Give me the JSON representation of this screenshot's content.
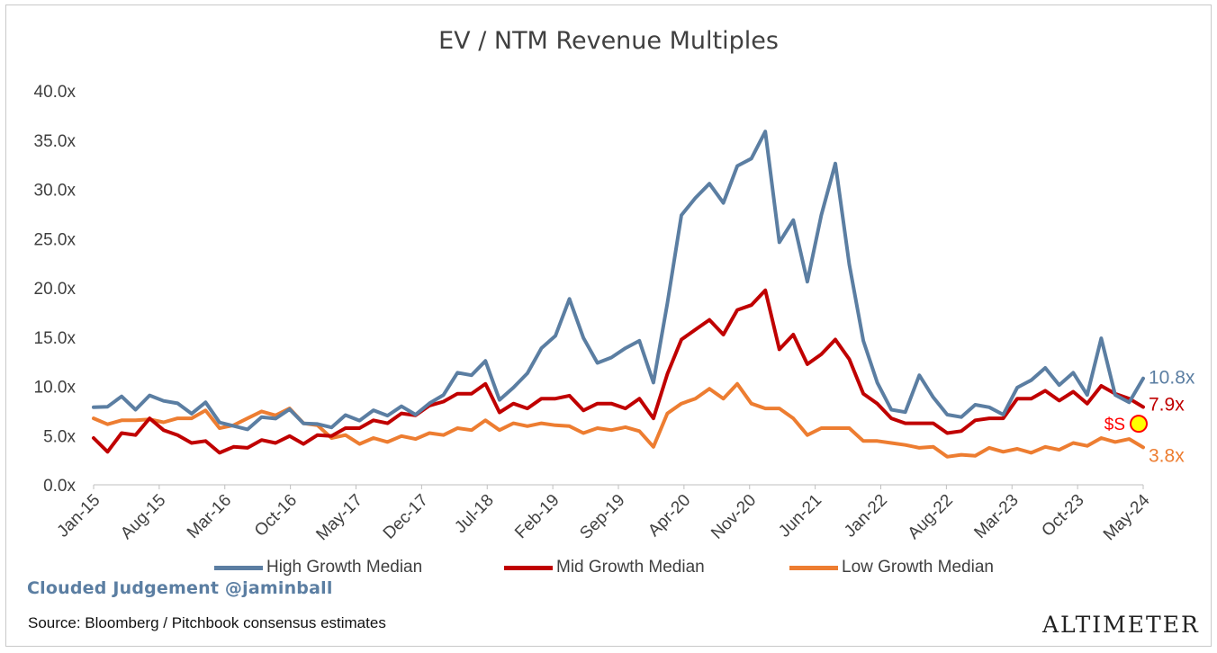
{
  "chart_data": {
    "type": "line",
    "title": "EV / NTM Revenue Multiples",
    "xlabel": "",
    "ylabel": "",
    "ylim": [
      0,
      40
    ],
    "yticks": [
      0,
      5,
      10,
      15,
      20,
      25,
      30,
      35,
      40
    ],
    "ytick_labels": [
      "0.0x",
      "5.0x",
      "10.0x",
      "15.0x",
      "20.0x",
      "25.0x",
      "30.0x",
      "35.0x",
      "40.0x"
    ],
    "xtick_labels": [
      "Jan-15",
      "Aug-15",
      "Mar-16",
      "Oct-16",
      "May-17",
      "Dec-17",
      "Jul-18",
      "Feb-19",
      "Sep-19",
      "Apr-20",
      "Nov-20",
      "Jun-21",
      "Jan-22",
      "Aug-22",
      "Mar-23",
      "Oct-23",
      "May-24"
    ],
    "grid": false,
    "legend_position": "bottom",
    "series": [
      {
        "name": "High Growth Median",
        "color": "#5b7ea2",
        "end_label": "10.8x",
        "values": [
          7.5,
          8.3,
          8.6,
          8.0,
          8.7,
          8.9,
          7.9,
          7.6,
          8.0,
          6.7,
          5.6,
          6.0,
          6.5,
          7.1,
          7.3,
          6.6,
          5.8,
          6.2,
          6.7,
          6.9,
          7.2,
          7.4,
          7.6,
          7.5,
          7.9,
          9.5,
          11.0,
          11.5,
          12.2,
          9.0,
          9.5,
          11.7,
          13.5,
          15.5,
          18.5,
          15.3,
          12.0,
          13.3,
          13.5,
          15.0,
          10.0,
          18.8,
          27.0,
          29.5,
          30.2,
          29.0,
          32.0,
          33.5,
          35.5,
          25.0,
          26.5,
          21.0,
          27.0,
          33.0,
          22.0,
          15.0,
          10.0,
          8.0,
          7.0,
          11.5,
          8.5,
          7.5,
          6.5,
          8.5,
          7.5,
          7.5,
          9.5,
          11.0,
          11.5,
          10.5,
          11.0,
          9.5,
          14.5,
          9.5,
          8.0,
          10.8
        ]
      },
      {
        "name": "Mid Growth Median",
        "color": "#c00000",
        "end_label": "7.9x",
        "values": [
          4.5,
          3.6,
          5.0,
          5.3,
          6.5,
          5.8,
          4.8,
          4.5,
          4.2,
          3.5,
          3.6,
          4.0,
          4.3,
          4.5,
          4.7,
          4.4,
          4.8,
          5.2,
          5.5,
          6.0,
          6.3,
          6.5,
          7.0,
          7.3,
          7.8,
          8.7,
          9.0,
          9.5,
          10.0,
          7.6,
          8.0,
          8.0,
          8.5,
          9.0,
          8.8,
          7.8,
          8.0,
          8.5,
          7.5,
          9.0,
          6.5,
          11.5,
          14.5,
          16.0,
          16.5,
          15.5,
          17.5,
          18.5,
          19.5,
          14.0,
          15.0,
          12.5,
          13.0,
          15.0,
          12.5,
          9.5,
          8.0,
          7.0,
          6.0,
          6.5,
          6.0,
          5.5,
          5.2,
          6.8,
          6.5,
          7.0,
          8.5,
          9.0,
          9.3,
          8.8,
          9.2,
          8.5,
          9.8,
          9.5,
          8.5,
          7.9
        ]
      },
      {
        "name": "Low Growth Median",
        "color": "#ed7d31",
        "end_label": "3.8x",
        "values": [
          6.5,
          6.4,
          6.3,
          6.8,
          6.4,
          6.6,
          6.5,
          7.0,
          7.3,
          6.0,
          5.8,
          7.0,
          7.2,
          7.3,
          7.5,
          6.5,
          5.8,
          5.0,
          4.8,
          4.4,
          4.5,
          4.6,
          4.7,
          4.9,
          5.0,
          5.3,
          5.5,
          5.8,
          6.3,
          5.8,
          6.0,
          6.2,
          6.0,
          6.3,
          5.7,
          5.5,
          5.5,
          5.8,
          5.6,
          5.7,
          3.6,
          7.5,
          8.0,
          9.0,
          9.5,
          9.0,
          10.0,
          8.5,
          7.5,
          8.0,
          6.5,
          5.3,
          5.5,
          6.0,
          5.5,
          4.7,
          4.2,
          4.5,
          3.8,
          4.0,
          3.6,
          3.1,
          2.8,
          3.2,
          3.5,
          3.6,
          3.4,
          3.5,
          3.6,
          3.8,
          4.0,
          4.2,
          4.5,
          4.6,
          4.4,
          3.8
        ]
      }
    ],
    "annotation": {
      "label": "$S",
      "value": 6.2,
      "color": "#ff0000",
      "marker_color": "#ffff00"
    }
  },
  "branding": {
    "watermark": "Clouded Judgement @jaminball",
    "source": "Source: Bloomberg / Pitchbook consensus estimates",
    "logo": "ALTIMETER"
  }
}
